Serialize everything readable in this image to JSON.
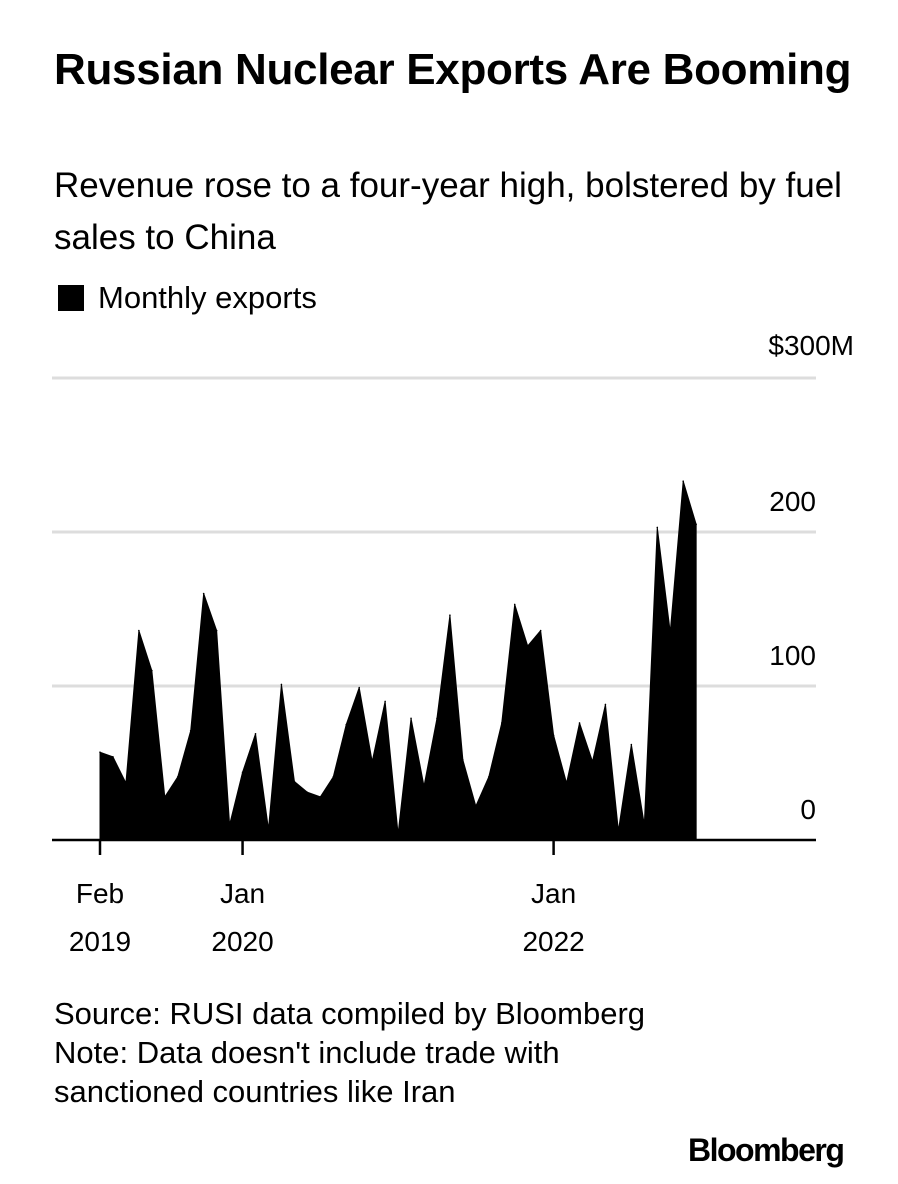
{
  "title": "Russian Nuclear Exports Are Booming",
  "subtitle": "Revenue rose to a four-year high, bolstered by fuel sales to China",
  "legend": {
    "label": "Monthly exports"
  },
  "footer": {
    "source": "Source: RUSI data compiled by Bloomberg",
    "note": "Note: Data doesn't include trade with sanctioned countries like Iran"
  },
  "brand": "Bloomberg",
  "colors": {
    "area": "#000000",
    "grid": "#dddddd",
    "text": "#000000",
    "background": "#ffffff"
  },
  "chart_data": {
    "type": "area",
    "title": "Russian Nuclear Exports Are Booming",
    "xlabel": "",
    "ylabel": "",
    "y_unit_label": "$300M",
    "ylim": [
      0,
      300
    ],
    "yticks": [
      {
        "value": 300,
        "label": "$300M"
      },
      {
        "value": 200,
        "label": "200"
      },
      {
        "value": 100,
        "label": "100"
      },
      {
        "value": 0,
        "label": "0"
      }
    ],
    "xticks": [
      {
        "index": 0,
        "label_line1": "Feb",
        "label_line2": "2019"
      },
      {
        "index": 11,
        "label_line1": "Jan",
        "label_line2": "2020"
      },
      {
        "index": 35,
        "label_line1": "Jan",
        "label_line2": "2022"
      }
    ],
    "series": [
      {
        "name": "Monthly exports",
        "start": "2019-02",
        "values": [
          57,
          54,
          37,
          136,
          110,
          28,
          41,
          71,
          160,
          136,
          10,
          44,
          69,
          7,
          101,
          38,
          31,
          28,
          41,
          75,
          99,
          51,
          90,
          4,
          79,
          35,
          79,
          146,
          52,
          22,
          41,
          76,
          153,
          126,
          136,
          68,
          37,
          76,
          51,
          88,
          6,
          62,
          10,
          203,
          135,
          233,
          205
        ]
      }
    ]
  }
}
